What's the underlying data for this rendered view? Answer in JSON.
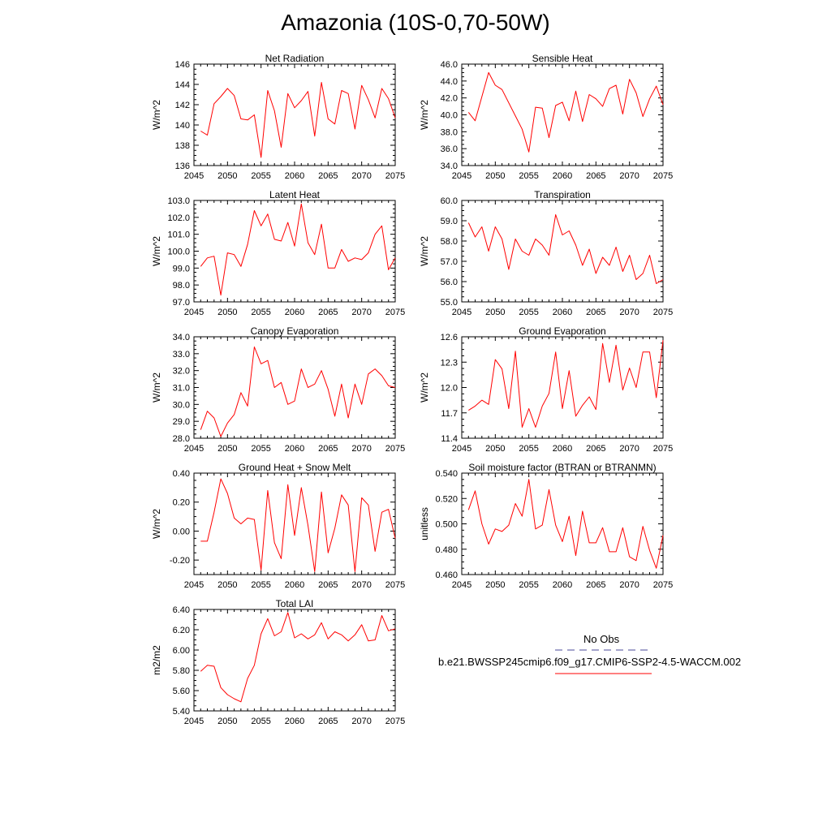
{
  "title": "Amazonia (10S-0,70-50W)",
  "colors": {
    "series": "#ff0000",
    "obs": "#4a4a9a",
    "axis": "#000000"
  },
  "legend": {
    "obs_label": "No Obs",
    "model_label": "b.e21.BWSSP245cmip6.f09_g17.CMIP6-SSP2-4.5-WACCM.002"
  },
  "chart_data": [
    {
      "type": "line",
      "title": "Net Radiation",
      "ylabel": "W/m^2",
      "ylim": [
        136,
        146
      ],
      "yticks": [
        136,
        138,
        140,
        142,
        144,
        146
      ],
      "ytick_labels": [
        "136",
        "138",
        "140",
        "142",
        "144",
        "146"
      ],
      "xlim": [
        2045,
        2075
      ],
      "xticks": [
        2045,
        2050,
        2055,
        2060,
        2065,
        2070,
        2075
      ],
      "xtick_labels": [
        "2045",
        "2050",
        "2055",
        "2060",
        "2065",
        "2070",
        "2075"
      ],
      "x": [
        2046,
        2047,
        2048,
        2049,
        2050,
        2051,
        2052,
        2053,
        2054,
        2055,
        2056,
        2057,
        2058,
        2059,
        2060,
        2061,
        2062,
        2063,
        2064,
        2065,
        2066,
        2067,
        2068,
        2069,
        2070,
        2071,
        2072,
        2073,
        2074,
        2075
      ],
      "y": [
        139.4,
        139.0,
        142.1,
        142.8,
        143.6,
        142.9,
        140.6,
        140.5,
        141.0,
        136.8,
        143.4,
        141.4,
        137.8,
        143.1,
        141.7,
        142.4,
        143.3,
        138.9,
        144.2,
        140.6,
        140.1,
        143.4,
        143.1,
        139.6,
        143.9,
        142.5,
        140.7,
        143.6,
        142.6,
        140.7
      ]
    },
    {
      "type": "line",
      "title": "Sensible Heat",
      "ylabel": "W/m^2",
      "ylim": [
        34,
        46
      ],
      "yticks": [
        34,
        36,
        38,
        40,
        42,
        44,
        46
      ],
      "ytick_labels": [
        "34.0",
        "36.0",
        "38.0",
        "40.0",
        "42.0",
        "44.0",
        "46.0"
      ],
      "xlim": [
        2045,
        2075
      ],
      "xticks": [
        2045,
        2050,
        2055,
        2060,
        2065,
        2070,
        2075
      ],
      "xtick_labels": [
        "2045",
        "2050",
        "2055",
        "2060",
        "2065",
        "2070",
        "2075"
      ],
      "x": [
        2046,
        2047,
        2049,
        2050,
        2051,
        2054,
        2055,
        2056,
        2057,
        2058,
        2059,
        2060,
        2061,
        2062,
        2063,
        2064,
        2065,
        2066,
        2067,
        2068,
        2069,
        2070,
        2071,
        2072,
        2073,
        2074,
        2075
      ],
      "y": [
        40.3,
        39.3,
        45.0,
        43.5,
        43.0,
        38.3,
        35.6,
        40.9,
        40.8,
        37.3,
        41.1,
        41.5,
        39.3,
        42.8,
        39.2,
        42.4,
        41.9,
        41.0,
        43.1,
        43.5,
        40.1,
        44.2,
        42.6,
        39.8,
        41.9,
        43.4,
        41.2
      ]
    },
    {
      "type": "line",
      "title": "Latent Heat",
      "ylabel": "W/m^2",
      "ylim": [
        97,
        103
      ],
      "yticks": [
        97,
        98,
        99,
        100,
        101,
        102,
        103
      ],
      "ytick_labels": [
        "97.0",
        "98.0",
        "99.0",
        "100.0",
        "101.0",
        "102.0",
        "103.0"
      ],
      "xlim": [
        2045,
        2075
      ],
      "xticks": [
        2045,
        2050,
        2055,
        2060,
        2065,
        2070,
        2075
      ],
      "xtick_labels": [
        "2045",
        "2050",
        "2055",
        "2060",
        "2065",
        "2070",
        "2075"
      ],
      "x": [
        2046,
        2047,
        2048,
        2049,
        2050,
        2051,
        2052,
        2053,
        2054,
        2055,
        2056,
        2057,
        2058,
        2059,
        2060,
        2061,
        2062,
        2063,
        2064,
        2065,
        2066,
        2067,
        2068,
        2069,
        2070,
        2071,
        2072,
        2073,
        2074,
        2075
      ],
      "y": [
        99.1,
        99.6,
        99.7,
        97.4,
        99.9,
        99.8,
        99.1,
        100.4,
        102.4,
        101.5,
        102.2,
        100.7,
        100.6,
        101.7,
        100.3,
        102.8,
        100.5,
        99.8,
        101.6,
        99.0,
        99.0,
        100.1,
        99.4,
        99.6,
        99.5,
        99.9,
        101.0,
        101.5,
        98.9,
        99.6
      ]
    },
    {
      "type": "line",
      "title": "Transpiration",
      "ylabel": "W/m^2",
      "ylim": [
        55,
        60
      ],
      "yticks": [
        55,
        56,
        57,
        58,
        59,
        60
      ],
      "ytick_labels": [
        "55.0",
        "56.0",
        "57.0",
        "58.0",
        "59.0",
        "60.0"
      ],
      "xlim": [
        2045,
        2075
      ],
      "xticks": [
        2045,
        2050,
        2055,
        2060,
        2065,
        2070,
        2075
      ],
      "xtick_labels": [
        "2045",
        "2050",
        "2055",
        "2060",
        "2065",
        "2070",
        "2075"
      ],
      "x": [
        2046,
        2047,
        2048,
        2049,
        2050,
        2051,
        2052,
        2053,
        2054,
        2055,
        2056,
        2057,
        2058,
        2059,
        2060,
        2061,
        2062,
        2063,
        2064,
        2065,
        2066,
        2067,
        2068,
        2069,
        2070,
        2071,
        2072,
        2073,
        2074,
        2075
      ],
      "y": [
        58.9,
        58.2,
        58.7,
        57.5,
        58.7,
        58.1,
        56.6,
        58.1,
        57.5,
        57.3,
        58.1,
        57.8,
        57.3,
        59.3,
        58.3,
        58.5,
        57.8,
        56.8,
        57.6,
        56.4,
        57.2,
        56.8,
        57.7,
        56.5,
        57.3,
        56.1,
        56.4,
        57.3,
        55.9,
        56.1
      ]
    },
    {
      "type": "line",
      "title": "Canopy Evaporation",
      "ylabel": "W/m^2",
      "ylim": [
        28,
        34
      ],
      "yticks": [
        28,
        29,
        30,
        31,
        32,
        33,
        34
      ],
      "ytick_labels": [
        "28.0",
        "29.0",
        "30.0",
        "31.0",
        "32.0",
        "33.0",
        "34.0"
      ],
      "xlim": [
        2045,
        2075
      ],
      "xticks": [
        2045,
        2050,
        2055,
        2060,
        2065,
        2070,
        2075
      ],
      "xtick_labels": [
        "2045",
        "2050",
        "2055",
        "2060",
        "2065",
        "2070",
        "2075"
      ],
      "x": [
        2046,
        2047,
        2048,
        2049,
        2050,
        2051,
        2052,
        2053,
        2054,
        2055,
        2056,
        2057,
        2058,
        2059,
        2060,
        2061,
        2062,
        2063,
        2064,
        2065,
        2066,
        2067,
        2068,
        2069,
        2070,
        2071,
        2072,
        2073,
        2074,
        2075
      ],
      "y": [
        28.5,
        29.6,
        29.2,
        28.1,
        28.9,
        29.4,
        30.7,
        29.9,
        33.4,
        32.4,
        32.6,
        31.0,
        31.3,
        30.0,
        30.2,
        32.1,
        31.0,
        31.2,
        32.0,
        30.9,
        29.3,
        31.2,
        29.2,
        31.2,
        30.0,
        31.8,
        32.1,
        31.7,
        31.1,
        31.0
      ]
    },
    {
      "type": "line",
      "title": "Ground Evaporation",
      "ylabel": "W/m^2",
      "ylim": [
        11.4,
        12.6
      ],
      "yticks": [
        11.4,
        11.7,
        12.0,
        12.3,
        12.6
      ],
      "ytick_labels": [
        "11.4",
        "11.7",
        "12.0",
        "12.3",
        "12.6"
      ],
      "xlim": [
        2045,
        2075
      ],
      "xticks": [
        2045,
        2050,
        2055,
        2060,
        2065,
        2070,
        2075
      ],
      "xtick_labels": [
        "2045",
        "2050",
        "2055",
        "2060",
        "2065",
        "2070",
        "2075"
      ],
      "x": [
        2046,
        2047,
        2048,
        2049,
        2050,
        2051,
        2052,
        2053,
        2054,
        2055,
        2056,
        2057,
        2058,
        2059,
        2060,
        2061,
        2062,
        2063,
        2064,
        2065,
        2066,
        2067,
        2068,
        2069,
        2070,
        2071,
        2072,
        2073,
        2074,
        2075
      ],
      "y": [
        11.73,
        11.78,
        11.85,
        11.8,
        12.33,
        12.22,
        11.75,
        12.43,
        11.53,
        11.75,
        11.53,
        11.78,
        11.93,
        12.42,
        11.75,
        12.2,
        11.66,
        11.79,
        11.89,
        11.74,
        12.52,
        12.06,
        12.5,
        11.97,
        12.23,
        12.0,
        12.42,
        12.42,
        11.88,
        12.56
      ]
    },
    {
      "type": "line",
      "title": "Ground Heat + Snow Melt",
      "ylabel": "W/m^2",
      "ylim": [
        -0.3,
        0.4
      ],
      "yticks": [
        -0.2,
        0.0,
        0.2,
        0.4
      ],
      "ytick_labels": [
        "-0.20",
        "0.00",
        "0.20",
        "0.40"
      ],
      "xlim": [
        2045,
        2075
      ],
      "xticks": [
        2045,
        2050,
        2055,
        2060,
        2065,
        2070,
        2075
      ],
      "xtick_labels": [
        "2045",
        "2050",
        "2055",
        "2060",
        "2065",
        "2070",
        "2075"
      ],
      "x": [
        2046,
        2047,
        2048,
        2049,
        2050,
        2051,
        2052,
        2053,
        2054,
        2055,
        2056,
        2057,
        2058,
        2059,
        2060,
        2061,
        2062,
        2063,
        2064,
        2065,
        2066,
        2067,
        2068,
        2069,
        2070,
        2071,
        2072,
        2073,
        2074,
        2075
      ],
      "y": [
        -0.07,
        -0.07,
        0.13,
        0.36,
        0.26,
        0.09,
        0.05,
        0.09,
        0.08,
        -0.27,
        0.28,
        -0.08,
        -0.19,
        0.32,
        -0.03,
        0.3,
        0.04,
        -0.28,
        0.27,
        -0.15,
        0.02,
        0.25,
        0.18,
        -0.28,
        0.23,
        0.18,
        -0.14,
        0.13,
        0.15,
        -0.05
      ]
    },
    {
      "type": "line",
      "title": "Soil moisture factor (BTRAN or BTRANMN)",
      "ylabel": "unitless",
      "ylim": [
        0.46,
        0.54
      ],
      "yticks": [
        0.46,
        0.48,
        0.5,
        0.52,
        0.54
      ],
      "ytick_labels": [
        "0.460",
        "0.480",
        "0.500",
        "0.520",
        "0.540"
      ],
      "xlim": [
        2045,
        2075
      ],
      "xticks": [
        2045,
        2050,
        2055,
        2060,
        2065,
        2070,
        2075
      ],
      "xtick_labels": [
        "2045",
        "2050",
        "2055",
        "2060",
        "2065",
        "2070",
        "2075"
      ],
      "x": [
        2046,
        2047,
        2048,
        2049,
        2050,
        2051,
        2052,
        2053,
        2054,
        2055,
        2056,
        2057,
        2058,
        2059,
        2060,
        2061,
        2062,
        2063,
        2064,
        2065,
        2066,
        2067,
        2068,
        2069,
        2070,
        2071,
        2072,
        2073,
        2074,
        2075
      ],
      "y": [
        0.511,
        0.526,
        0.5,
        0.484,
        0.496,
        0.494,
        0.499,
        0.516,
        0.506,
        0.535,
        0.496,
        0.499,
        0.527,
        0.499,
        0.486,
        0.506,
        0.475,
        0.51,
        0.485,
        0.485,
        0.497,
        0.478,
        0.478,
        0.497,
        0.474,
        0.471,
        0.498,
        0.479,
        0.465,
        0.491
      ]
    },
    {
      "type": "line",
      "title": "Total LAI",
      "ylabel": "m2/m2",
      "ylim": [
        5.4,
        6.4
      ],
      "yticks": [
        5.4,
        5.6,
        5.8,
        6.0,
        6.2,
        6.4
      ],
      "ytick_labels": [
        "5.40",
        "5.60",
        "5.80",
        "6.00",
        "6.20",
        "6.40"
      ],
      "xlim": [
        2045,
        2075
      ],
      "xticks": [
        2045,
        2050,
        2055,
        2060,
        2065,
        2070,
        2075
      ],
      "xtick_labels": [
        "2045",
        "2050",
        "2055",
        "2060",
        "2065",
        "2070",
        "2075"
      ],
      "x": [
        2046,
        2047,
        2048,
        2049,
        2050,
        2051,
        2052,
        2053,
        2054,
        2055,
        2056,
        2057,
        2058,
        2059,
        2060,
        2061,
        2062,
        2063,
        2064,
        2065,
        2066,
        2067,
        2068,
        2069,
        2070,
        2071,
        2072,
        2073,
        2074,
        2075
      ],
      "y": [
        5.79,
        5.85,
        5.84,
        5.63,
        5.56,
        5.52,
        5.49,
        5.72,
        5.85,
        6.16,
        6.31,
        6.14,
        6.18,
        6.37,
        6.12,
        6.16,
        6.11,
        6.15,
        6.27,
        6.11,
        6.18,
        6.15,
        6.09,
        6.15,
        6.25,
        6.09,
        6.1,
        6.34,
        6.19,
        6.21
      ]
    }
  ]
}
